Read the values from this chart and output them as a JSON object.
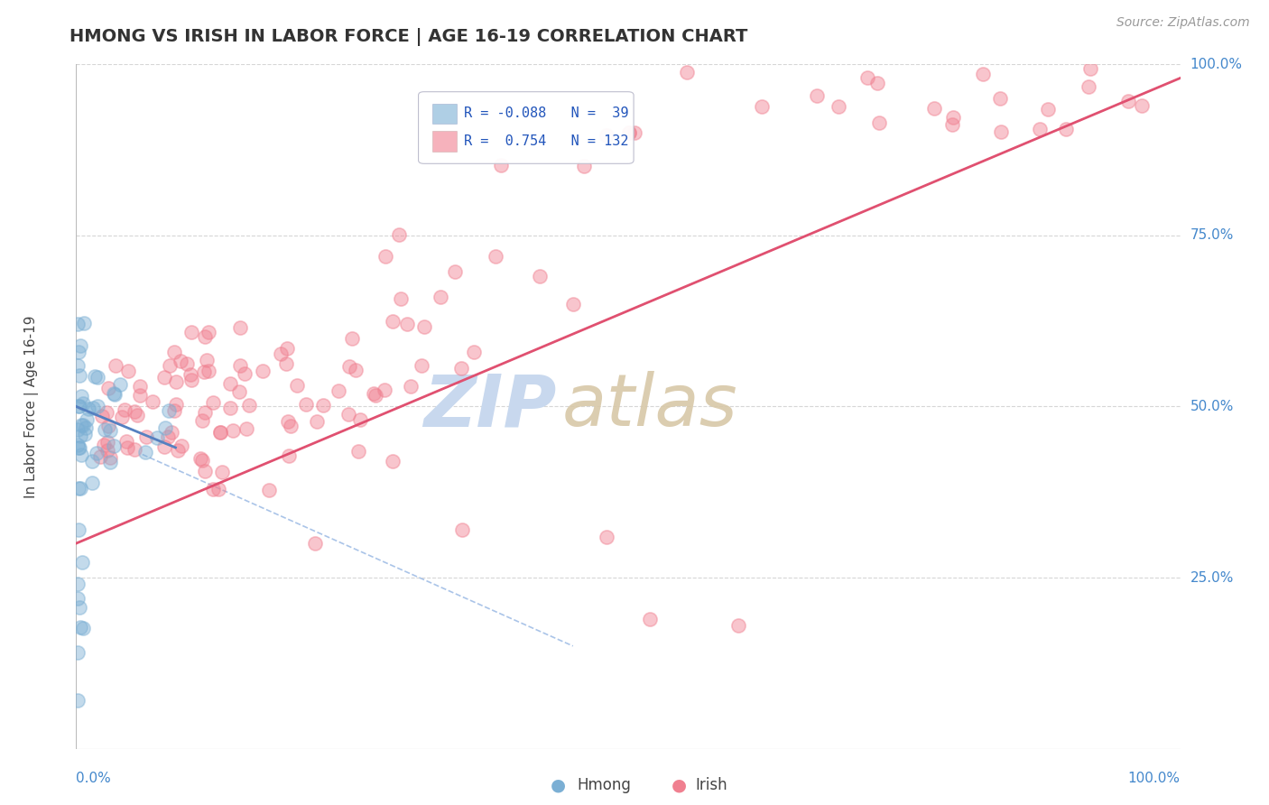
{
  "title": "HMONG VS IRISH IN LABOR FORCE | AGE 16-19 CORRELATION CHART",
  "source_text": "Source: ZipAtlas.com",
  "ylabel": "In Labor Force | Age 16-19",
  "legend_hmong_R": "-0.088",
  "legend_hmong_N": "39",
  "legend_irish_R": "0.754",
  "legend_irish_N": "132",
  "hmong_color": "#7bafd4",
  "irish_color": "#f08090",
  "hmong_line_color": "#5580c0",
  "irish_line_color": "#e05070",
  "hmong_dash_color": "#aac4e8",
  "background_color": "#ffffff",
  "grid_color": "#cccccc",
  "title_color": "#333333",
  "axis_label_color": "#4488cc",
  "legend_text_color": "#2255bb",
  "watermark_zip_color": "#c8d8ee",
  "watermark_atlas_color": "#d8c8a8"
}
